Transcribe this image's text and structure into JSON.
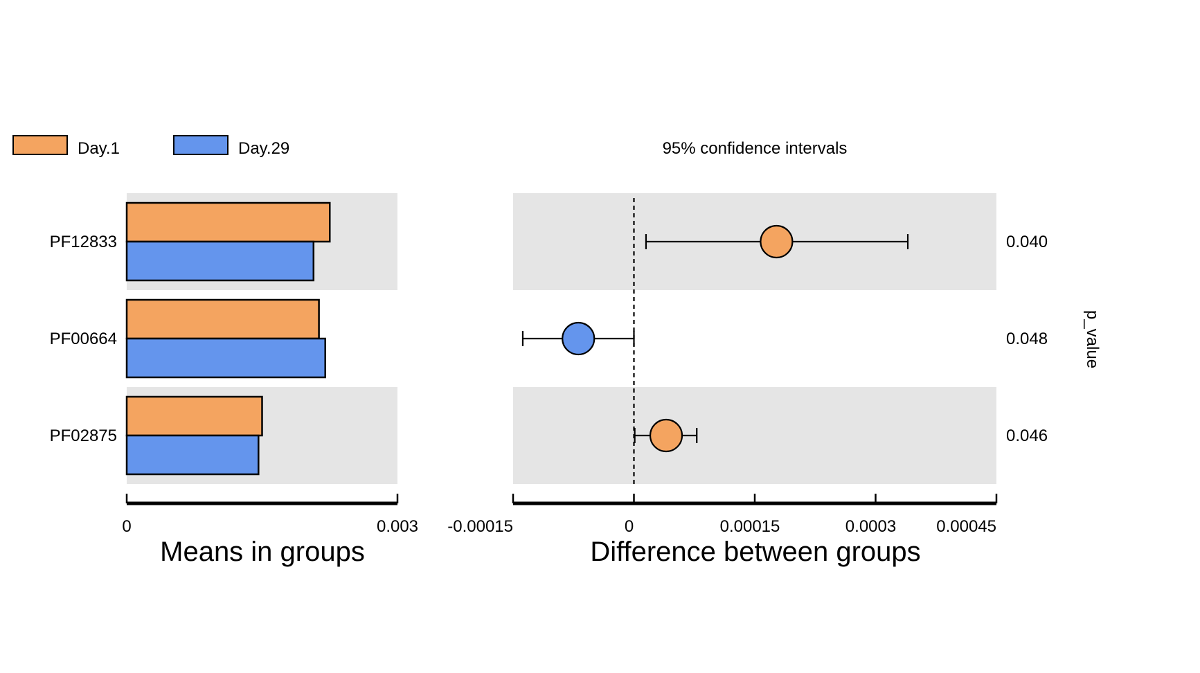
{
  "legend": [
    {
      "label": "Day.1",
      "color": "#F4A460"
    },
    {
      "label": "Day.29",
      "color": "#6495ED"
    }
  ],
  "ci_title": "95% confidence intervals",
  "pvalue_label": "p_value",
  "left_xlabel": "Means in groups",
  "right_xlabel": "Difference between groups",
  "left_ticks": [
    "0",
    "0.003"
  ],
  "right_ticks": [
    "-0.00015",
    "0",
    "0.00015",
    "0.0003",
    "0.00045"
  ],
  "chart_data": [
    {
      "type": "bar",
      "orientation": "horizontal",
      "xlabel": "Means in groups",
      "xlim": [
        0,
        0.003
      ],
      "categories": [
        "PF12833",
        "PF00664",
        "PF02875"
      ],
      "series": [
        {
          "name": "Day.1",
          "color": "#F4A460",
          "values": [
            0.00225,
            0.00213,
            0.0015
          ]
        },
        {
          "name": "Day.29",
          "color": "#6495ED",
          "values": [
            0.00207,
            0.0022,
            0.00146
          ]
        }
      ]
    },
    {
      "type": "scatter",
      "title": "95% confidence intervals",
      "xlabel": "Difference between groups",
      "xlim": [
        -0.00015,
        0.00045
      ],
      "categories": [
        "PF12833",
        "PF00664",
        "PF02875"
      ],
      "points": [
        {
          "feature": "PF12833",
          "diff": 0.000177,
          "lower": 1.5e-05,
          "upper": 0.00034,
          "group": "Day.1",
          "color": "#F4A460",
          "p_value": "0.040"
        },
        {
          "feature": "PF00664",
          "diff": -6.9e-05,
          "lower": -0.000138,
          "upper": 0.0,
          "group": "Day.29",
          "color": "#6495ED",
          "p_value": "0.048"
        },
        {
          "feature": "PF02875",
          "diff": 4e-05,
          "lower": 1e-06,
          "upper": 7.8e-05,
          "group": "Day.1",
          "color": "#F4A460",
          "p_value": "0.046"
        }
      ],
      "reference_line": 0
    }
  ]
}
